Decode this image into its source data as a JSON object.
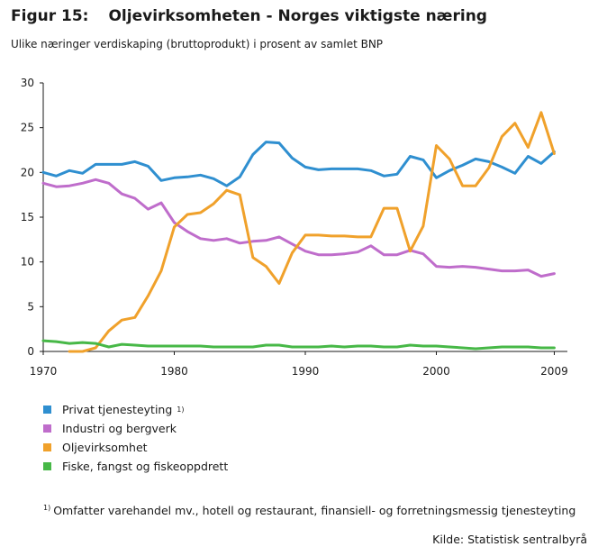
{
  "figure": {
    "number": "Figur 15:",
    "title": "Oljevirksomheten - Norges viktigste næring",
    "subtitle": "Ulike næringer verdiskaping (bruttoprodukt) i prosent av samlet BNP",
    "footnote_marker": "1)",
    "footnote_text": "Omfatter varehandel mv., hotell og restaurant, finansiell- og forretningsmessig tjenesteyting",
    "source": "Kilde: Statistisk sentralbyrå"
  },
  "chart_data": {
    "type": "line",
    "title": "Oljevirksomheten - Norges viktigste næring",
    "subtitle": "Ulike næringer verdiskaping (bruttoprodukt) i prosent av samlet BNP",
    "xlabel": "",
    "ylabel": "",
    "xlim": [
      1970,
      2010
    ],
    "ylim": [
      0,
      30
    ],
    "x_ticks": [
      1970,
      1980,
      1990,
      2000,
      2009
    ],
    "y_ticks": [
      0,
      5,
      10,
      15,
      20,
      25,
      30
    ],
    "grid": false,
    "legend_position": "bottom-left",
    "series": [
      {
        "name": "Privat tjenesteyting",
        "name_marker": "1)",
        "color": "#2f8fd0",
        "x": [
          1970,
          1971,
          1972,
          1973,
          1974,
          1975,
          1976,
          1977,
          1978,
          1979,
          1980,
          1981,
          1982,
          1983,
          1984,
          1985,
          1986,
          1987,
          1988,
          1989,
          1990,
          1991,
          1992,
          1993,
          1994,
          1995,
          1996,
          1997,
          1998,
          1999,
          2000,
          2001,
          2002,
          2003,
          2004,
          2005,
          2006,
          2007,
          2008,
          2009
        ],
        "values": [
          20.0,
          19.6,
          20.2,
          19.9,
          20.9,
          20.9,
          20.9,
          21.2,
          20.7,
          19.1,
          19.4,
          19.5,
          19.7,
          19.3,
          18.5,
          19.5,
          22.0,
          23.4,
          23.3,
          21.6,
          20.6,
          20.3,
          20.4,
          20.4,
          20.4,
          20.2,
          19.6,
          19.8,
          21.8,
          21.4,
          19.4,
          20.2,
          20.8,
          21.5,
          21.2,
          20.6,
          19.9,
          21.8,
          21.0,
          22.3
        ]
      },
      {
        "name": "Industri og bergverk",
        "color": "#bf6dcb",
        "x": [
          1970,
          1971,
          1972,
          1973,
          1974,
          1975,
          1976,
          1977,
          1978,
          1979,
          1980,
          1981,
          1982,
          1983,
          1984,
          1985,
          1986,
          1987,
          1988,
          1989,
          1990,
          1991,
          1992,
          1993,
          1994,
          1995,
          1996,
          1997,
          1998,
          1999,
          2000,
          2001,
          2002,
          2003,
          2004,
          2005,
          2006,
          2007,
          2008,
          2009
        ],
        "values": [
          18.8,
          18.4,
          18.5,
          18.8,
          19.2,
          18.8,
          17.6,
          17.1,
          15.9,
          16.6,
          14.4,
          13.4,
          12.6,
          12.4,
          12.6,
          12.1,
          12.3,
          12.4,
          12.8,
          12.0,
          11.2,
          10.8,
          10.8,
          10.9,
          11.1,
          11.8,
          10.8,
          10.8,
          11.3,
          10.9,
          9.5,
          9.4,
          9.5,
          9.4,
          9.2,
          9.0,
          9.0,
          9.1,
          8.4,
          8.7
        ]
      },
      {
        "name": "Oljevirksomhet",
        "color": "#f0a12b",
        "x": [
          1972,
          1973,
          1974,
          1975,
          1976,
          1977,
          1978,
          1979,
          1980,
          1981,
          1982,
          1983,
          1984,
          1985,
          1986,
          1987,
          1988,
          1989,
          1990,
          1991,
          1992,
          1993,
          1994,
          1995,
          1996,
          1997,
          1998,
          1999,
          2000,
          2001,
          2002,
          2003,
          2004,
          2005,
          2006,
          2007,
          2008,
          2009
        ],
        "values": [
          0.0,
          0.0,
          0.4,
          2.3,
          3.5,
          3.8,
          6.2,
          9.0,
          13.9,
          15.3,
          15.5,
          16.5,
          18.0,
          17.5,
          10.5,
          9.5,
          7.6,
          11.0,
          13.0,
          13.0,
          12.9,
          12.9,
          12.8,
          12.8,
          16.0,
          16.0,
          11.2,
          14.0,
          23.0,
          21.5,
          18.5,
          18.5,
          20.5,
          24.0,
          25.5,
          22.8,
          26.7,
          22.1
        ]
      },
      {
        "name": "Fiske, fangst og fiskeoppdrett",
        "color": "#47b847",
        "x": [
          1970,
          1971,
          1972,
          1973,
          1974,
          1975,
          1976,
          1977,
          1978,
          1979,
          1980,
          1981,
          1982,
          1983,
          1984,
          1985,
          1986,
          1987,
          1988,
          1989,
          1990,
          1991,
          1992,
          1993,
          1994,
          1995,
          1996,
          1997,
          1998,
          1999,
          2000,
          2001,
          2002,
          2003,
          2004,
          2005,
          2006,
          2007,
          2008,
          2009
        ],
        "values": [
          1.2,
          1.1,
          0.9,
          1.0,
          0.9,
          0.5,
          0.8,
          0.7,
          0.6,
          0.6,
          0.6,
          0.6,
          0.6,
          0.5,
          0.5,
          0.5,
          0.5,
          0.7,
          0.7,
          0.5,
          0.5,
          0.5,
          0.6,
          0.5,
          0.6,
          0.6,
          0.5,
          0.5,
          0.7,
          0.6,
          0.6,
          0.5,
          0.4,
          0.3,
          0.4,
          0.5,
          0.5,
          0.5,
          0.4,
          0.4
        ]
      }
    ]
  }
}
